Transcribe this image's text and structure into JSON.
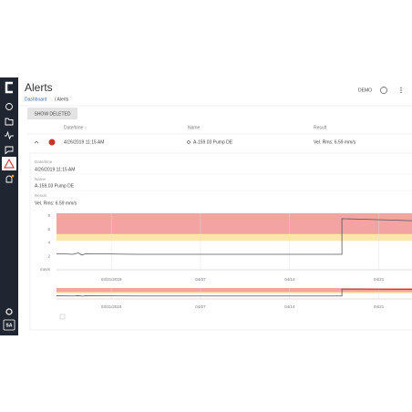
{
  "header": {
    "title": "Alerts",
    "breadcrumb": [
      "Dashboard",
      "/ Alerts"
    ],
    "user": "DEMO"
  },
  "sidebar": {
    "user_initials": "SA"
  },
  "toolbar": {
    "button": "SHOW DELETED"
  },
  "table": {
    "columns": [
      "Date/time ↓",
      "Name",
      "Result"
    ],
    "rows": [
      [
        "4/26/2019 11:15 AM",
        "A-159.03 Pump DE",
        "Vel. Rms: 6.59 mm/s"
      ]
    ]
  },
  "detail": {
    "fields": [
      {
        "label": "Date/time",
        "value": "4/26/2019 11:15 AM"
      },
      {
        "label": "Name",
        "value": "A-159.03 Pump DE"
      },
      {
        "label": "Result",
        "value": "Vel. Rms: 6.59 mm/s"
      }
    ]
  },
  "chart_data": {
    "type": "line",
    "x": [
      -4.3,
      -3,
      -2.6,
      -2.3,
      -2,
      2,
      6,
      10,
      14,
      18.1,
      18.1,
      20,
      23.6
    ],
    "series": [
      {
        "color": "#555555",
        "values": [
          2.4,
          2.3,
          2.5,
          2.2,
          2.4,
          2.3,
          2.3,
          2.3,
          2.3,
          2.3,
          7.6,
          7.5,
          7.3
        ]
      }
    ],
    "xlim": [
      -4.3,
      23.6
    ],
    "xticks": [
      {
        "value": 0,
        "label": "03/31/2019"
      },
      {
        "value": 7,
        "label": "04/07"
      },
      {
        "value": 14,
        "label": "04/14"
      },
      {
        "value": 21,
        "label": "04/21"
      }
    ],
    "ylim": [
      0,
      8.4
    ],
    "yticks": [
      {
        "value": 0,
        "label": "mm/s"
      },
      2,
      4,
      6,
      8
    ],
    "bands": [
      {
        "range": [
          5.3,
          8.4
        ],
        "color": "#f4a3a3"
      },
      {
        "range": [
          4.3,
          5.3
        ],
        "color": "#fde6a6"
      }
    ],
    "grid": true
  }
}
